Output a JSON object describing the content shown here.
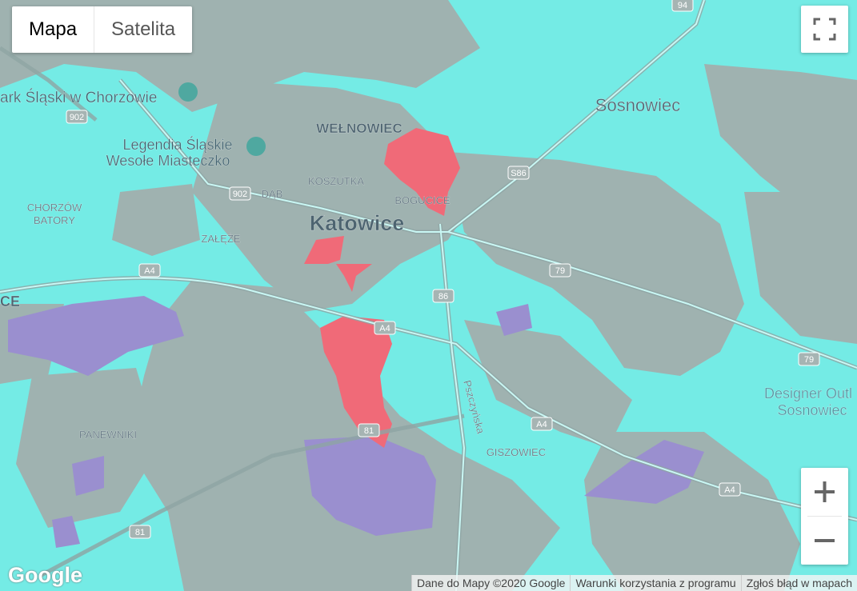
{
  "map_type": [
    "Mapa",
    "Satelita"
  ],
  "labels": [
    "ark Śląski w Chorzowie",
    "Legendia Śląskie",
    "Wesołe Miasteczko",
    "WEŁNOWIEC",
    "KOSZUTKA",
    "BOGUCICE",
    "Katowice",
    "Sosnowiec",
    "CHORZÓW",
    "BATORY",
    "ZAŁĘŻE",
    "DĄB",
    "CE",
    "PANEWNIKI",
    "GISZOWIEC",
    "Designer Outl",
    "Sosnowiec",
    "Pszczyńska"
  ],
  "shields": [
    "902",
    "902",
    "S86",
    "94",
    "A4",
    "A4",
    "A4",
    "A4",
    "86",
    "79",
    "79",
    "81",
    "81"
  ],
  "logo": "Google",
  "footer": [
    "Dane do Mapy ©2020 Google",
    "Warunki korzystania z programu",
    "Zgłoś błąd w mapach"
  ]
}
